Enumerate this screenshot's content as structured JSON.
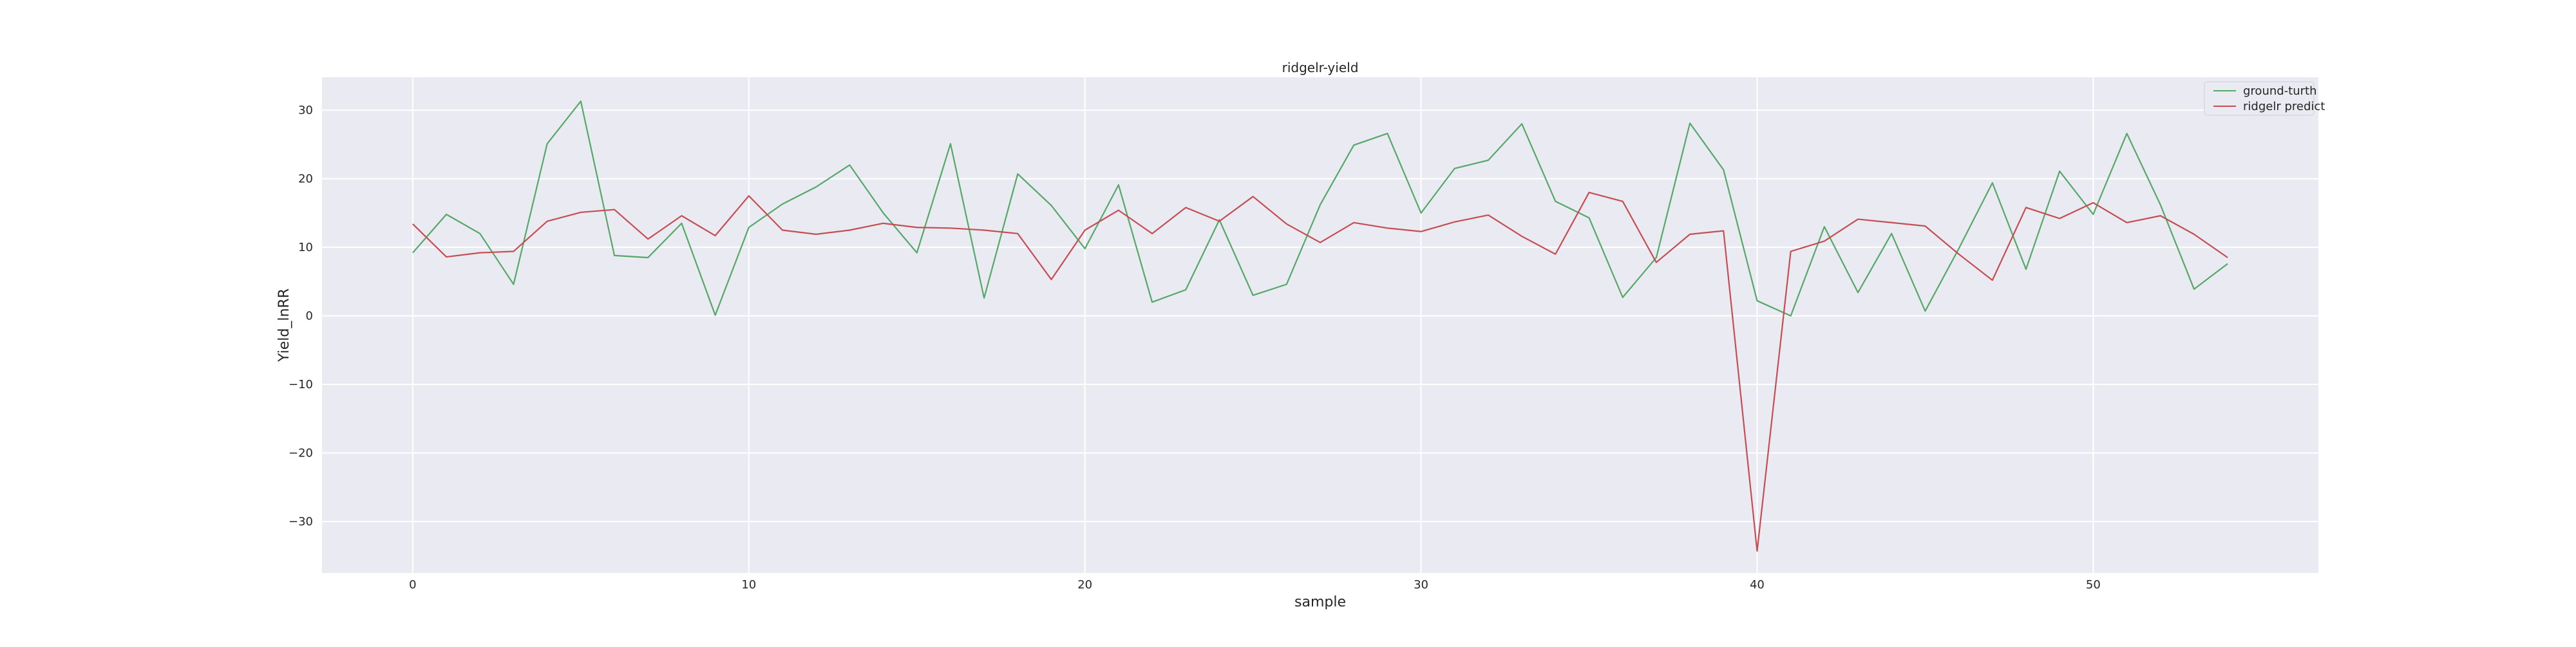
{
  "chart_data": {
    "type": "line",
    "title": "ridgelr-yield",
    "xlabel": "sample",
    "ylabel": "Yield_lnRR",
    "xlim": [
      -2.7,
      56.7
    ],
    "ylim": [
      -37.5,
      34.8
    ],
    "xticks": [
      0,
      10,
      20,
      30,
      40,
      50
    ],
    "yticks": [
      -30,
      -20,
      -10,
      0,
      10,
      20,
      30
    ],
    "grid": true,
    "legend_position": "top-right",
    "x": [
      0,
      1,
      2,
      3,
      4,
      5,
      6,
      7,
      8,
      9,
      10,
      11,
      12,
      13,
      14,
      15,
      16,
      17,
      18,
      19,
      20,
      21,
      22,
      23,
      24,
      25,
      26,
      27,
      28,
      29,
      30,
      31,
      32,
      33,
      34,
      35,
      36,
      37,
      38,
      39,
      40,
      41,
      42,
      43,
      44,
      45,
      46,
      47,
      48,
      49,
      50,
      51,
      52,
      53,
      54
    ],
    "series": [
      {
        "name": "ground-turth",
        "color": "#55a868",
        "values": [
          9.2,
          14.8,
          12.0,
          4.6,
          25.1,
          31.3,
          8.8,
          8.5,
          13.5,
          0.1,
          12.9,
          16.3,
          18.8,
          22.0,
          15.0,
          9.2,
          25.1,
          2.6,
          20.7,
          16.1,
          9.8,
          19.1,
          2.0,
          3.8,
          14.0,
          3.0,
          4.6,
          16.2,
          24.9,
          26.6,
          15.0,
          21.5,
          22.7,
          28.0,
          16.7,
          14.3,
          2.7,
          8.5,
          28.1,
          21.3,
          2.2,
          0.0,
          13.0,
          3.4,
          12.0,
          0.7,
          9.8,
          19.4,
          6.8,
          21.1,
          14.8,
          26.6,
          16.2,
          3.9,
          7.6
        ]
      },
      {
        "name": "ridgelr predict",
        "color": "#c44e52",
        "values": [
          13.4,
          8.6,
          9.2,
          9.4,
          13.8,
          15.1,
          15.5,
          11.2,
          14.6,
          11.7,
          17.5,
          12.5,
          11.9,
          12.5,
          13.5,
          12.9,
          12.8,
          12.5,
          12.0,
          5.3,
          12.5,
          15.4,
          12.0,
          15.8,
          13.8,
          17.4,
          13.4,
          10.7,
          13.6,
          12.8,
          12.3,
          13.7,
          14.7,
          11.6,
          9.0,
          18.0,
          16.7,
          7.8,
          11.9,
          12.4,
          -34.3,
          9.4,
          10.9,
          14.1,
          13.6,
          13.1,
          9.0,
          5.2,
          15.8,
          14.2,
          16.5,
          13.6,
          14.6,
          11.9,
          8.5
        ]
      }
    ]
  }
}
